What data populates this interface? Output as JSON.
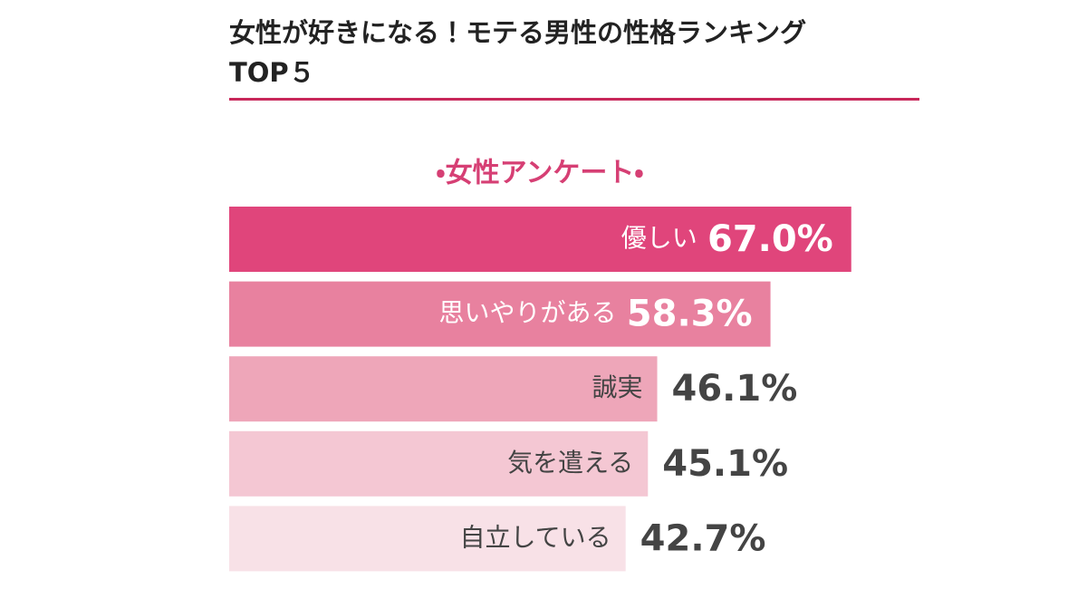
{
  "chart_data": {
    "type": "bar",
    "title": "女性が好きになる！モテる男性の性格ランキングTOP５",
    "subtitle": "・女性アンケート・",
    "categories": [
      "優しい",
      "思いやりがある",
      "誠実",
      "気を遣える",
      "自立している"
    ],
    "values": [
      67.0,
      58.3,
      46.1,
      45.1,
      42.7
    ],
    "value_labels": [
      "67.0%",
      "58.3%",
      "46.1%",
      "45.1%",
      "42.7%"
    ],
    "colors": [
      "#e0457b",
      "#e8819f",
      "#eea6b9",
      "#f4c7d3",
      "#f8e1e7"
    ]
  }
}
